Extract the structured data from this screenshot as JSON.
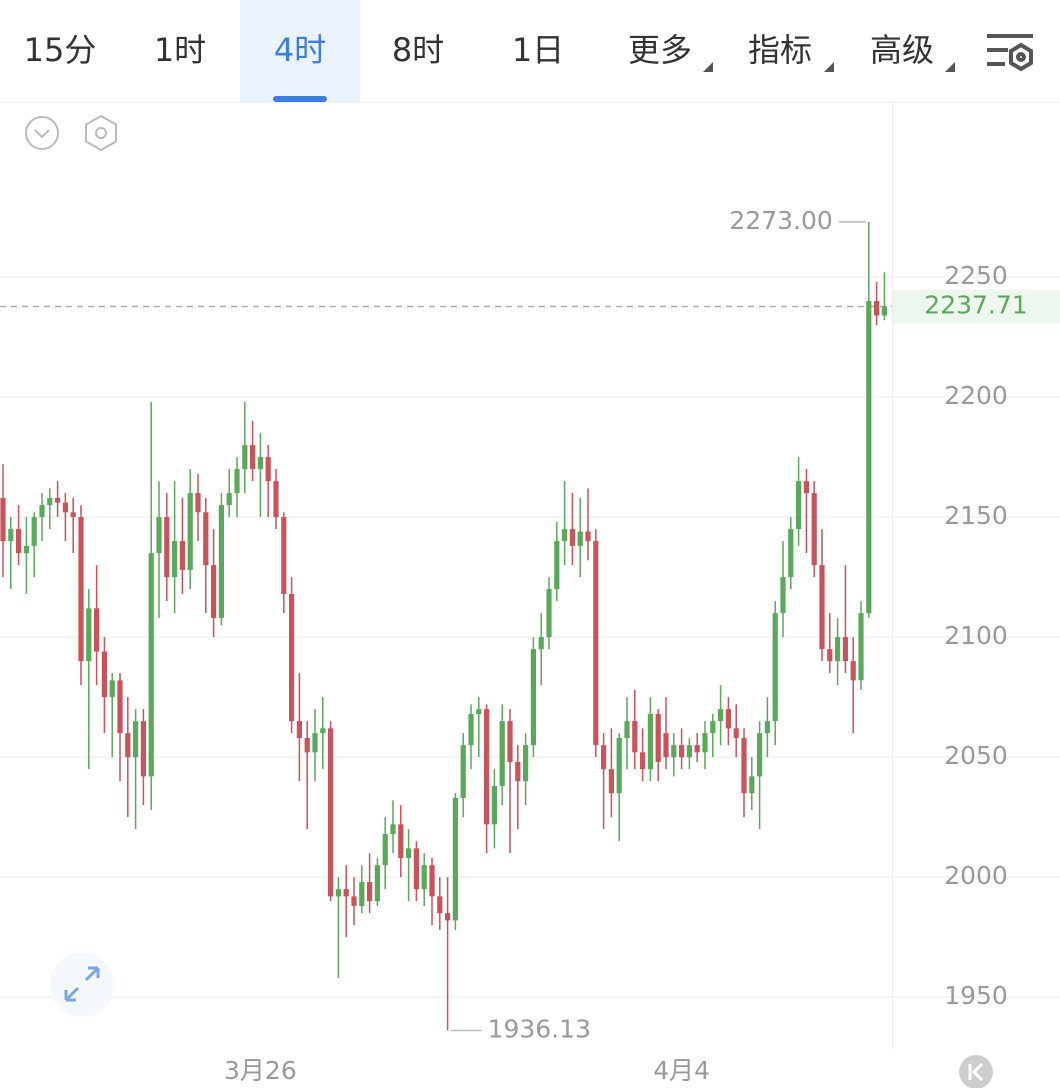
{
  "tabs": [
    "15分",
    "1时",
    "4时",
    "8时",
    "1日",
    "更多",
    "指标",
    "高级"
  ],
  "selected_tab": 2,
  "chart_data": {
    "type": "candlestick",
    "up_color": "#5aa85a",
    "down_color": "#c9525b",
    "ylim": [
      1928,
      2322.5
    ],
    "yticks": [
      1950,
      2000,
      2050,
      2100,
      2150,
      2200,
      2250
    ],
    "grid": true,
    "categories": [
      null,
      null,
      null,
      null,
      null,
      null,
      null,
      null,
      null,
      null,
      null,
      null,
      null,
      null,
      null,
      null,
      null,
      null,
      null,
      null,
      null,
      null,
      null,
      null,
      null,
      null,
      null,
      null,
      null,
      null,
      null,
      null,
      null,
      "3月26",
      null,
      null,
      null,
      null,
      null,
      null,
      null,
      null,
      null,
      null,
      null,
      null,
      null,
      null,
      null,
      null,
      null,
      null,
      null,
      null,
      null,
      null,
      null,
      null,
      null,
      null,
      null,
      null,
      null,
      null,
      null,
      null,
      null,
      null,
      null,
      null,
      null,
      null,
      null,
      null,
      null,
      null,
      null,
      null,
      null,
      null,
      null,
      null,
      null,
      null,
      null,
      null,
      null,
      "4月4",
      null,
      null,
      null,
      null,
      null,
      null,
      null,
      null,
      null,
      null,
      null,
      null,
      null,
      null,
      null,
      null,
      null,
      null,
      null,
      null,
      null,
      null,
      null,
      null,
      null,
      null,
      null,
      null,
      null,
      null
    ],
    "ohlc": [
      [
        2158,
        2172,
        2125,
        2140
      ],
      [
        2140,
        2150,
        2120,
        2145
      ],
      [
        2145,
        2155,
        2130,
        2135
      ],
      [
        2135,
        2150,
        2118,
        2138
      ],
      [
        2138,
        2152,
        2125,
        2150
      ],
      [
        2150,
        2160,
        2140,
        2155
      ],
      [
        2155,
        2162,
        2145,
        2158
      ],
      [
        2158,
        2165,
        2150,
        2156
      ],
      [
        2156,
        2160,
        2140,
        2152
      ],
      [
        2152,
        2158,
        2135,
        2150
      ],
      [
        2150,
        2155,
        2080,
        2090
      ],
      [
        2090,
        2120,
        2045,
        2112
      ],
      [
        2112,
        2130,
        2080,
        2094
      ],
      [
        2094,
        2100,
        2060,
        2075
      ],
      [
        2075,
        2085,
        2050,
        2082
      ],
      [
        2082,
        2085,
        2040,
        2060
      ],
      [
        2060,
        2075,
        2025,
        2050
      ],
      [
        2050,
        2070,
        2020,
        2065
      ],
      [
        2065,
        2070,
        2030,
        2042
      ],
      [
        2042,
        2198,
        2028,
        2135
      ],
      [
        2135,
        2165,
        2108,
        2150
      ],
      [
        2150,
        2160,
        2115,
        2125
      ],
      [
        2125,
        2165,
        2110,
        2140
      ],
      [
        2140,
        2158,
        2118,
        2128
      ],
      [
        2128,
        2170,
        2120,
        2160
      ],
      [
        2160,
        2168,
        2140,
        2152
      ],
      [
        2152,
        2158,
        2110,
        2130
      ],
      [
        2130,
        2145,
        2100,
        2108
      ],
      [
        2108,
        2160,
        2105,
        2155
      ],
      [
        2155,
        2170,
        2150,
        2160
      ],
      [
        2160,
        2175,
        2150,
        2170
      ],
      [
        2170,
        2198,
        2160,
        2180
      ],
      [
        2180,
        2190,
        2165,
        2170
      ],
      [
        2170,
        2185,
        2150,
        2175
      ],
      [
        2175,
        2180,
        2150,
        2165
      ],
      [
        2165,
        2170,
        2145,
        2150
      ],
      [
        2150,
        2152,
        2110,
        2118
      ],
      [
        2118,
        2125,
        2060,
        2065
      ],
      [
        2065,
        2085,
        2040,
        2058
      ],
      [
        2058,
        2065,
        2020,
        2052
      ],
      [
        2052,
        2070,
        2040,
        2060
      ],
      [
        2060,
        2075,
        2045,
        2062
      ],
      [
        2062,
        2065,
        1990,
        1992
      ],
      [
        1992,
        2000,
        1958,
        1995
      ],
      [
        1995,
        2005,
        1975,
        1992
      ],
      [
        1992,
        2000,
        1980,
        1988
      ],
      [
        1988,
        2005,
        1985,
        1998
      ],
      [
        1998,
        2010,
        1985,
        1990
      ],
      [
        1990,
        2008,
        1988,
        2005
      ],
      [
        2005,
        2025,
        1995,
        2018
      ],
      [
        2018,
        2032,
        2010,
        2022
      ],
      [
        2022,
        2030,
        2000,
        2008
      ],
      [
        2008,
        2020,
        1990,
        2012
      ],
      [
        2012,
        2015,
        1990,
        1995
      ],
      [
        1995,
        2010,
        1988,
        2005
      ],
      [
        2005,
        2008,
        1980,
        1992
      ],
      [
        1992,
        2000,
        1978,
        1985
      ],
      [
        1985,
        2000,
        1936.13,
        1982
      ],
      [
        1982,
        2035,
        1978,
        2033
      ],
      [
        2033,
        2060,
        2025,
        2055
      ],
      [
        2055,
        2072,
        2045,
        2068
      ],
      [
        2068,
        2075,
        2050,
        2070
      ],
      [
        2070,
        2072,
        2010,
        2022
      ],
      [
        2022,
        2045,
        2012,
        2038
      ],
      [
        2038,
        2072,
        2030,
        2065
      ],
      [
        2065,
        2070,
        2010,
        2048
      ],
      [
        2048,
        2055,
        2020,
        2040
      ],
      [
        2040,
        2060,
        2030,
        2055
      ],
      [
        2055,
        2100,
        2050,
        2095
      ],
      [
        2095,
        2110,
        2080,
        2100
      ],
      [
        2100,
        2125,
        2095,
        2120
      ],
      [
        2120,
        2148,
        2115,
        2140
      ],
      [
        2140,
        2165,
        2130,
        2145
      ],
      [
        2145,
        2160,
        2130,
        2138
      ],
      [
        2138,
        2158,
        2125,
        2144
      ],
      [
        2144,
        2162,
        2132,
        2140
      ],
      [
        2140,
        2145,
        2050,
        2055
      ],
      [
        2055,
        2060,
        2020,
        2045
      ],
      [
        2045,
        2062,
        2025,
        2035
      ],
      [
        2035,
        2060,
        2015,
        2058
      ],
      [
        2058,
        2075,
        2045,
        2065
      ],
      [
        2065,
        2078,
        2045,
        2052
      ],
      [
        2052,
        2062,
        2040,
        2045
      ],
      [
        2045,
        2075,
        2040,
        2068
      ],
      [
        2068,
        2070,
        2040,
        2048
      ],
      [
        2060,
        2075,
        2045,
        2050
      ],
      [
        2050,
        2060,
        2042,
        2055
      ],
      [
        2055,
        2062,
        2045,
        2050
      ],
      [
        2050,
        2058,
        2045,
        2055
      ],
      [
        2055,
        2060,
        2048,
        2052
      ],
      [
        2052,
        2065,
        2045,
        2060
      ],
      [
        2060,
        2068,
        2050,
        2065
      ],
      [
        2065,
        2080,
        2055,
        2070
      ],
      [
        2070,
        2075,
        2055,
        2062
      ],
      [
        2062,
        2072,
        2050,
        2058
      ],
      [
        2058,
        2062,
        2025,
        2035
      ],
      [
        2035,
        2050,
        2028,
        2042
      ],
      [
        2042,
        2065,
        2020,
        2060
      ],
      [
        2060,
        2075,
        2050,
        2065
      ],
      [
        2065,
        2115,
        2055,
        2110
      ],
      [
        2110,
        2140,
        2100,
        2125
      ],
      [
        2125,
        2150,
        2120,
        2145
      ],
      [
        2145,
        2175,
        2138,
        2165
      ],
      [
        2165,
        2170,
        2135,
        2160
      ],
      [
        2160,
        2165,
        2125,
        2130
      ],
      [
        2130,
        2145,
        2090,
        2095
      ],
      [
        2095,
        2110,
        2085,
        2090
      ],
      [
        2090,
        2108,
        2080,
        2100
      ],
      [
        2100,
        2130,
        2085,
        2090
      ],
      [
        2090,
        2100,
        2060,
        2082
      ],
      [
        2082,
        2115,
        2078,
        2110
      ],
      [
        2110,
        2273.0,
        2108,
        2240
      ],
      [
        2240,
        2248,
        2230,
        2234
      ],
      [
        2234,
        2252,
        2232,
        2237.71
      ]
    ],
    "annotations": [
      {
        "value": 2273.0,
        "label": "2273.00"
      },
      {
        "value": 1936.13,
        "label": "1936.13"
      }
    ],
    "last_price": {
      "value": 2237.71,
      "label": "2237.71"
    }
  }
}
